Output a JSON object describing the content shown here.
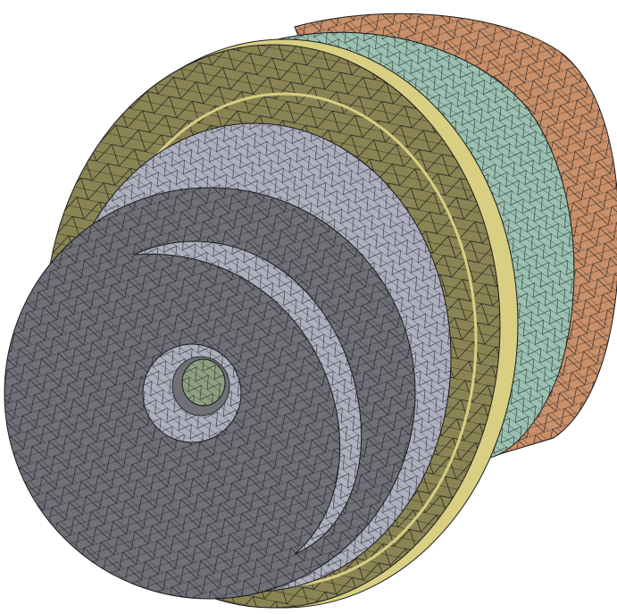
{
  "scene": {
    "background": "#ffffff",
    "mesh_line_color": "#1c1c1c",
    "parts": [
      {
        "name": "rear-housing",
        "color": "#c9906a"
      },
      {
        "name": "teal-ring",
        "color": "#9bc1b2"
      },
      {
        "name": "mounting-flange",
        "color": "#8a8454"
      },
      {
        "name": "flange-rim",
        "color": "#d8cf82"
      },
      {
        "name": "outer-bearing-ring",
        "color": "#aeb0c0"
      },
      {
        "name": "front-face-disc",
        "color": "#6f7078"
      },
      {
        "name": "inner-ring",
        "color": "#aeb0c0"
      },
      {
        "name": "bore",
        "color": "#aeb0c0"
      },
      {
        "name": "shaft-core",
        "color": "#8fa080"
      }
    ]
  }
}
